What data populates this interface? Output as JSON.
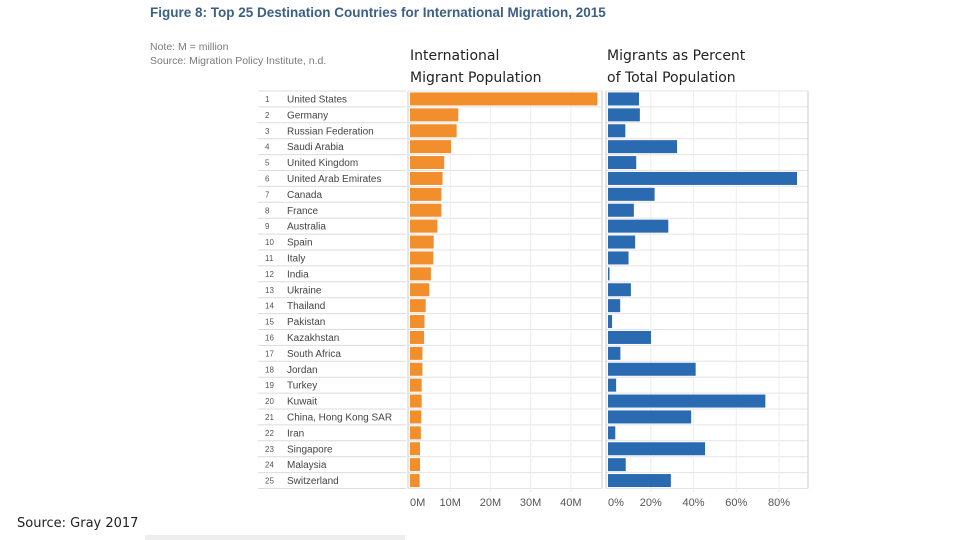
{
  "title": "Figure 8: Top 25 Destination Countries for International Migration, 2015",
  "note": "Note: M = million",
  "source_note": "Source: Migration Policy Institute, n.d.",
  "headers": {
    "population": [
      "International",
      "Migrant Population"
    ],
    "percent": [
      "Migrants as Percent",
      "of Total Population"
    ]
  },
  "slide_source": "Source: Gray 2017",
  "colors": {
    "population": "#f28e2b",
    "percent": "#2a6ab1"
  },
  "chart_data": [
    {
      "type": "bar",
      "orientation": "horizontal",
      "title": "International Migrant Population",
      "categories": [
        "United States",
        "Germany",
        "Russian Federation",
        "Saudi Arabia",
        "United Kingdom",
        "United Arab Emirates",
        "Canada",
        "France",
        "Australia",
        "Spain",
        "Italy",
        "India",
        "Ukraine",
        "Thailand",
        "Pakistan",
        "Kazakhstan",
        "South Africa",
        "Jordan",
        "Turkey",
        "Kuwait",
        "China, Hong Kong SAR",
        "Iran",
        "Singapore",
        "Malaysia",
        "Switzerland"
      ],
      "ranks": [
        "1",
        "2",
        "3",
        "4",
        "5",
        "6",
        "7",
        "8",
        "9",
        "10",
        "11",
        "12",
        "13",
        "14",
        "15",
        "16",
        "17",
        "18",
        "19",
        "20",
        "21",
        "22",
        "23",
        "24",
        "25"
      ],
      "values": [
        46.6,
        12.0,
        11.6,
        10.2,
        8.5,
        8.1,
        7.8,
        7.8,
        6.8,
        5.9,
        5.8,
        5.2,
        4.8,
        3.9,
        3.6,
        3.5,
        3.1,
        3.1,
        2.9,
        2.9,
        2.8,
        2.7,
        2.5,
        2.5,
        2.4
      ],
      "xlim": [
        0,
        47
      ],
      "xticks": [
        0,
        10,
        20,
        30,
        40
      ],
      "tick_labels": [
        "0M",
        "10M",
        "20M",
        "30M",
        "40M"
      ],
      "xlabel": "",
      "ylabel": ""
    },
    {
      "type": "bar",
      "orientation": "horizontal",
      "title": "Migrants as Percent of Total Population",
      "categories": [
        "United States",
        "Germany",
        "Russian Federation",
        "Saudi Arabia",
        "United Kingdom",
        "United Arab Emirates",
        "Canada",
        "France",
        "Australia",
        "Spain",
        "Italy",
        "India",
        "Ukraine",
        "Thailand",
        "Pakistan",
        "Kazakhstan",
        "South Africa",
        "Jordan",
        "Turkey",
        "Kuwait",
        "China, Hong Kong SAR",
        "Iran",
        "Singapore",
        "Malaysia",
        "Switzerland"
      ],
      "values": [
        14.5,
        14.9,
        8.1,
        32.3,
        13.2,
        88.4,
        21.8,
        12.1,
        28.2,
        12.7,
        9.6,
        0.4,
        10.7,
        5.7,
        1.9,
        20.1,
        5.8,
        41.0,
        3.8,
        73.6,
        38.9,
        3.4,
        45.4,
        8.3,
        29.4
      ],
      "xlim": [
        0,
        90
      ],
      "xticks": [
        0,
        20,
        40,
        60,
        80
      ],
      "tick_labels": [
        "0%",
        "20%",
        "40%",
        "60%",
        "80%"
      ],
      "xlabel": "",
      "ylabel": ""
    }
  ]
}
